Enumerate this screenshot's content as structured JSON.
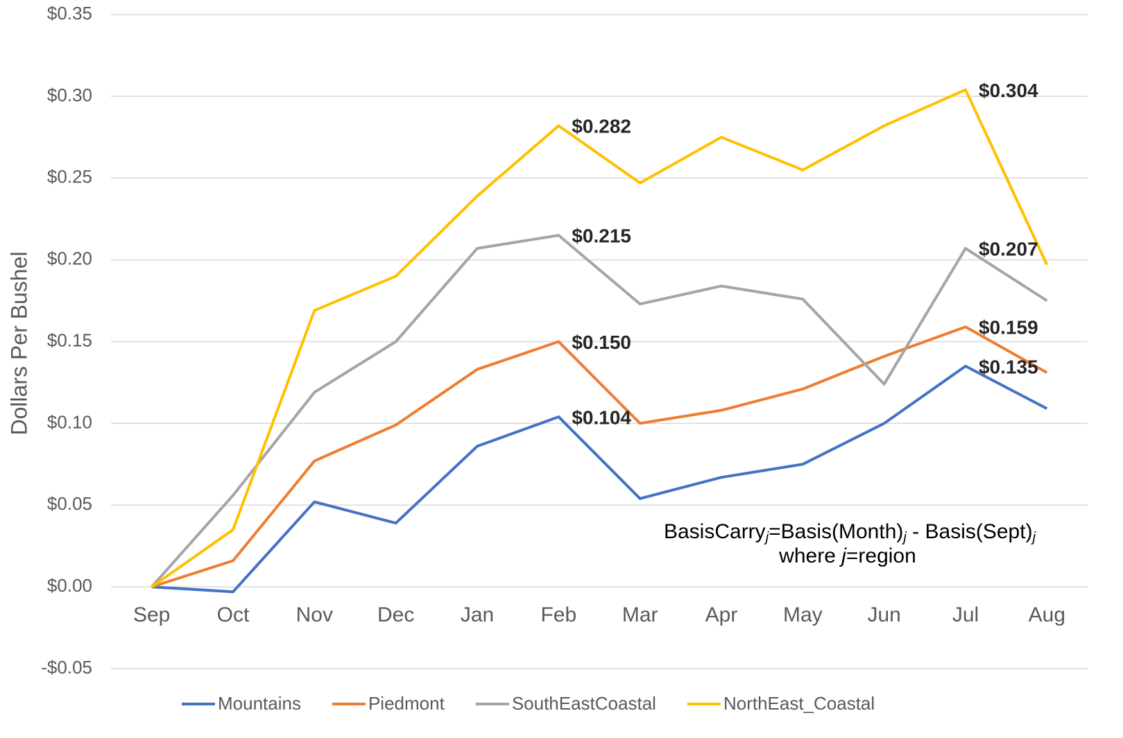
{
  "chart_data": {
    "type": "line",
    "y_label": "Dollars Per Bushel",
    "categories": [
      "Sep",
      "Oct",
      "Nov",
      "Dec",
      "Jan",
      "Feb",
      "Mar",
      "Apr",
      "May",
      "Jun",
      "Jul",
      "Aug"
    ],
    "series": [
      {
        "name": "Mountains",
        "color": "#4472c4",
        "values": [
          0,
          -0.003,
          0.052,
          0.039,
          0.086,
          0.104,
          0.054,
          0.067,
          0.075,
          0.1,
          0.135,
          0.109
        ],
        "value_labels": [
          null,
          null,
          null,
          null,
          null,
          "$0.104",
          null,
          null,
          null,
          null,
          "$0.135",
          null
        ]
      },
      {
        "name": "Piedmont",
        "color": "#ed7d31",
        "values": [
          0,
          0.016,
          0.077,
          0.099,
          0.133,
          0.15,
          0.1,
          0.108,
          0.121,
          0.141,
          0.159,
          0.131
        ],
        "value_labels": [
          null,
          null,
          null,
          null,
          null,
          "$0.150",
          null,
          null,
          null,
          null,
          "$0.159",
          null
        ]
      },
      {
        "name": "SouthEastCoastal",
        "color": "#a5a5a5",
        "values": [
          0,
          0.056,
          0.119,
          0.15,
          0.207,
          0.215,
          0.173,
          0.184,
          0.176,
          0.124,
          0.207,
          0.175
        ],
        "value_labels": [
          null,
          null,
          null,
          null,
          null,
          "$0.215",
          null,
          null,
          null,
          null,
          "$0.207",
          null
        ]
      },
      {
        "name": "NorthEast_Coastal",
        "color": "#ffc000",
        "values": [
          0,
          0.035,
          0.169,
          0.19,
          0.239,
          0.282,
          0.247,
          0.275,
          0.255,
          0.282,
          0.304,
          0.197
        ],
        "value_labels": [
          null,
          null,
          null,
          null,
          null,
          "$0.282",
          null,
          null,
          null,
          null,
          "$0.304",
          null
        ]
      }
    ],
    "ylim": [
      -0.05,
      0.35
    ],
    "yticks": [
      {
        "value": -0.05,
        "label": "-$0.05"
      },
      {
        "value": 0,
        "label": "$0.00"
      },
      {
        "value": 0.05,
        "label": "$0.05"
      },
      {
        "value": 0.1,
        "label": "$0.10"
      },
      {
        "value": 0.15,
        "label": "$0.15"
      },
      {
        "value": 0.2,
        "label": "$0.20"
      },
      {
        "value": 0.25,
        "label": "$0.25"
      },
      {
        "value": 0.3,
        "label": "$0.30"
      },
      {
        "value": 0.35,
        "label": "$0.35"
      }
    ],
    "grid": true,
    "legend": "bottom",
    "annotation": [
      "BasisCarry",
      "j",
      "=Basis(Month)",
      "j",
      " - Basis(Sept)",
      "j"
    ],
    "annotation_2": [
      "where ",
      "j",
      "=region"
    ]
  }
}
